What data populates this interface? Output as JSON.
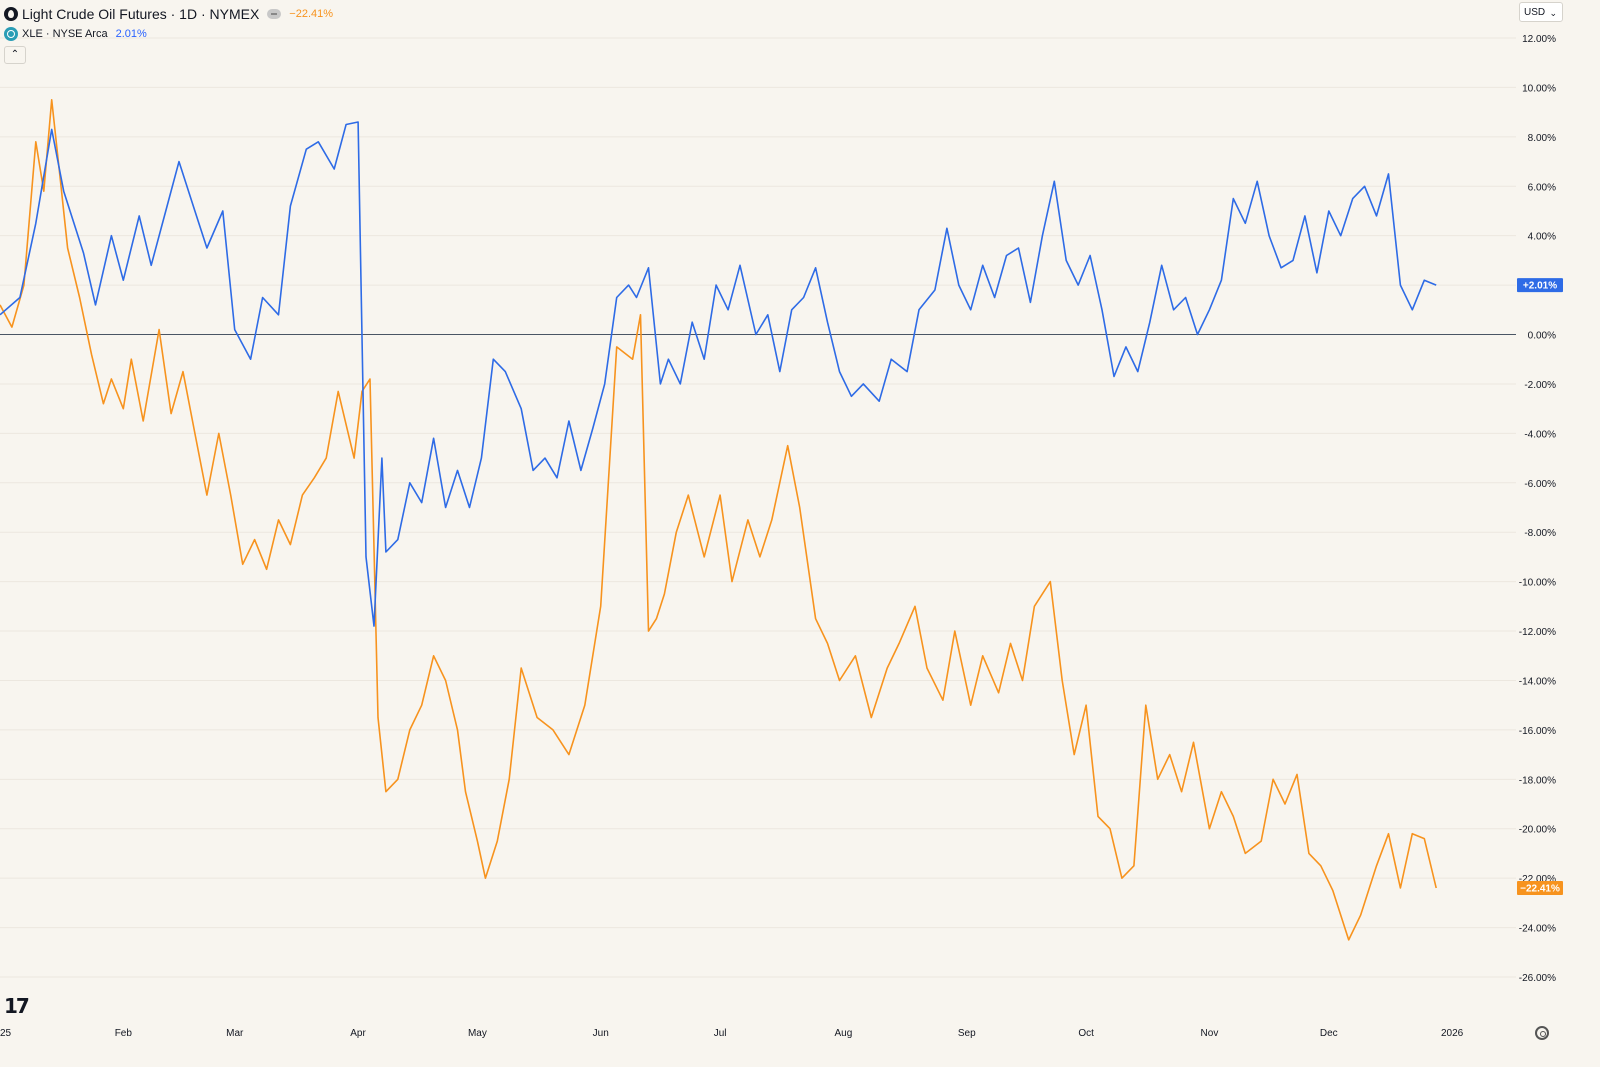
{
  "legend": {
    "main_title": "Light Crude Oil Futures · 1D · NYMEX",
    "main_change": "−22.41%",
    "compare_title": "XLE · NYSE Arca",
    "compare_change": "2.01%"
  },
  "toolbar": {
    "collapse_glyph": "⌃",
    "currency": "USD",
    "currency_chevron": "⌄"
  },
  "logo_text": "17",
  "colors": {
    "oil": "#f7931e",
    "xle": "#2e6be6",
    "background": "#f8f5ef",
    "grid": "#ece7df",
    "zero_line": "#4a5564"
  },
  "chart_data": {
    "type": "line",
    "percent_scale": true,
    "ylim": [
      -26,
      12
    ],
    "y_ticks": [
      12,
      10,
      8,
      6,
      4,
      2,
      0,
      -2,
      -4,
      -6,
      -8,
      -10,
      -12,
      -14,
      -16,
      -18,
      -20,
      -22,
      -24,
      -26
    ],
    "y_tick_labels": [
      "12.00%",
      "10.00%",
      "8.00%",
      "6.00%",
      "4.00%",
      "2.00%",
      "0.00%",
      "-2.00%",
      "-4.00%",
      "-6.00%",
      "-8.00%",
      "-10.00%",
      "-12.00%",
      "-14.00%",
      "-16.00%",
      "-18.00%",
      "-20.00%",
      "-22.00%",
      "-24.00%",
      "-26.00%"
    ],
    "xlim": [
      "2025-01-01",
      "2026-01-07"
    ],
    "x_ticks": [
      "2025-01-01",
      "2025-02-01",
      "2025-03-01",
      "2025-04-01",
      "2025-05-01",
      "2025-06-01",
      "2025-07-01",
      "2025-08-01",
      "2025-09-01",
      "2025-10-01",
      "2025-11-01",
      "2025-12-01",
      "2026-01-01"
    ],
    "x_tick_labels": [
      "25",
      "Feb",
      "Mar",
      "Apr",
      "May",
      "Jun",
      "Jul",
      "Aug",
      "Sep",
      "Oct",
      "Nov",
      "Dec",
      "2026"
    ],
    "grid": true,
    "series": [
      {
        "name": "XLE",
        "role": "xle",
        "last_label": "+2.01%",
        "x": [
          "2025-01-01",
          "2025-01-06",
          "2025-01-10",
          "2025-01-14",
          "2025-01-17",
          "2025-01-22",
          "2025-01-25",
          "2025-01-29",
          "2025-02-01",
          "2025-02-05",
          "2025-02-08",
          "2025-02-12",
          "2025-02-15",
          "2025-02-19",
          "2025-02-22",
          "2025-02-26",
          "2025-03-01",
          "2025-03-05",
          "2025-03-08",
          "2025-03-12",
          "2025-03-15",
          "2025-03-19",
          "2025-03-22",
          "2025-03-26",
          "2025-03-29",
          "2025-04-01",
          "2025-04-03",
          "2025-04-05",
          "2025-04-07",
          "2025-04-08",
          "2025-04-11",
          "2025-04-14",
          "2025-04-17",
          "2025-04-20",
          "2025-04-23",
          "2025-04-26",
          "2025-04-29",
          "2025-05-02",
          "2025-05-05",
          "2025-05-08",
          "2025-05-12",
          "2025-05-15",
          "2025-05-18",
          "2025-05-21",
          "2025-05-24",
          "2025-05-27",
          "2025-05-30",
          "2025-06-02",
          "2025-06-05",
          "2025-06-08",
          "2025-06-10",
          "2025-06-13",
          "2025-06-16",
          "2025-06-18",
          "2025-06-21",
          "2025-06-24",
          "2025-06-27",
          "2025-06-30",
          "2025-07-03",
          "2025-07-06",
          "2025-07-10",
          "2025-07-13",
          "2025-07-16",
          "2025-07-19",
          "2025-07-22",
          "2025-07-25",
          "2025-07-28",
          "2025-07-31",
          "2025-08-03",
          "2025-08-06",
          "2025-08-10",
          "2025-08-13",
          "2025-08-17",
          "2025-08-20",
          "2025-08-24",
          "2025-08-27",
          "2025-08-30",
          "2025-09-02",
          "2025-09-05",
          "2025-09-08",
          "2025-09-11",
          "2025-09-14",
          "2025-09-17",
          "2025-09-20",
          "2025-09-23",
          "2025-09-26",
          "2025-09-29",
          "2025-10-02",
          "2025-10-05",
          "2025-10-08",
          "2025-10-11",
          "2025-10-14",
          "2025-10-17",
          "2025-10-20",
          "2025-10-23",
          "2025-10-26",
          "2025-10-29",
          "2025-11-01",
          "2025-11-04",
          "2025-11-07",
          "2025-11-10",
          "2025-11-13",
          "2025-11-16",
          "2025-11-19",
          "2025-11-22",
          "2025-11-25",
          "2025-11-28",
          "2025-12-01",
          "2025-12-04",
          "2025-12-07",
          "2025-12-10",
          "2025-12-13",
          "2025-12-16",
          "2025-12-19",
          "2025-12-22",
          "2025-12-25",
          "2025-12-28"
        ],
        "y": [
          0.8,
          1.5,
          4.5,
          8.3,
          5.8,
          3.3,
          1.2,
          4.0,
          2.2,
          4.8,
          2.8,
          5.2,
          7.0,
          5.0,
          3.5,
          5.0,
          0.2,
          -1.0,
          1.5,
          0.8,
          5.2,
          7.5,
          7.8,
          6.7,
          8.5,
          8.6,
          -9.0,
          -11.8,
          -5.0,
          -8.8,
          -8.3,
          -6.0,
          -6.8,
          -4.2,
          -7.0,
          -5.5,
          -7.0,
          -5.0,
          -1.0,
          -1.5,
          -3.0,
          -5.5,
          -5.0,
          -5.8,
          -3.5,
          -5.5,
          -3.8,
          -2.0,
          1.5,
          2.0,
          1.5,
          2.7,
          -2.0,
          -1.0,
          -2.0,
          0.5,
          -1.0,
          2.0,
          1.0,
          2.8,
          0.0,
          0.8,
          -1.5,
          1.0,
          1.5,
          2.7,
          0.5,
          -1.5,
          -2.5,
          -2.0,
          -2.7,
          -1.0,
          -1.5,
          1.0,
          1.8,
          4.3,
          2.0,
          1.0,
          2.8,
          1.5,
          3.2,
          3.5,
          1.3,
          4.0,
          6.2,
          3.0,
          2.0,
          3.2,
          1.0,
          -1.7,
          -0.5,
          -1.5,
          0.5,
          2.8,
          1.0,
          1.5,
          0.0,
          1.0,
          2.2,
          5.5,
          4.5,
          6.2,
          4.0,
          2.7,
          3.0,
          4.8,
          2.5,
          5.0,
          4.0,
          5.5,
          6.0,
          4.8,
          6.5,
          2.0,
          1.0,
          2.2,
          2.0
        ]
      },
      {
        "name": "Light Crude Oil Futures",
        "role": "oil",
        "last_label": "−22.41%",
        "x": [
          "2025-01-01",
          "2025-01-04",
          "2025-01-07",
          "2025-01-10",
          "2025-01-12",
          "2025-01-14",
          "2025-01-16",
          "2025-01-18",
          "2025-01-21",
          "2025-01-24",
          "2025-01-27",
          "2025-01-29",
          "2025-02-01",
          "2025-02-03",
          "2025-02-06",
          "2025-02-10",
          "2025-02-13",
          "2025-02-16",
          "2025-02-19",
          "2025-02-22",
          "2025-02-25",
          "2025-02-28",
          "2025-03-03",
          "2025-03-06",
          "2025-03-09",
          "2025-03-12",
          "2025-03-15",
          "2025-03-18",
          "2025-03-21",
          "2025-03-24",
          "2025-03-27",
          "2025-03-31",
          "2025-04-02",
          "2025-04-04",
          "2025-04-06",
          "2025-04-08",
          "2025-04-11",
          "2025-04-14",
          "2025-04-17",
          "2025-04-20",
          "2025-04-23",
          "2025-04-26",
          "2025-04-28",
          "2025-05-01",
          "2025-05-03",
          "2025-05-06",
          "2025-05-09",
          "2025-05-12",
          "2025-05-16",
          "2025-05-20",
          "2025-05-24",
          "2025-05-28",
          "2025-06-01",
          "2025-06-05",
          "2025-06-09",
          "2025-06-11",
          "2025-06-13",
          "2025-06-15",
          "2025-06-17",
          "2025-06-20",
          "2025-06-23",
          "2025-06-27",
          "2025-07-01",
          "2025-07-04",
          "2025-07-08",
          "2025-07-11",
          "2025-07-14",
          "2025-07-18",
          "2025-07-21",
          "2025-07-25",
          "2025-07-28",
          "2025-07-31",
          "2025-08-04",
          "2025-08-08",
          "2025-08-12",
          "2025-08-15",
          "2025-08-19",
          "2025-08-22",
          "2025-08-26",
          "2025-08-29",
          "2025-09-02",
          "2025-09-05",
          "2025-09-09",
          "2025-09-12",
          "2025-09-15",
          "2025-09-18",
          "2025-09-22",
          "2025-09-25",
          "2025-09-28",
          "2025-10-01",
          "2025-10-04",
          "2025-10-07",
          "2025-10-10",
          "2025-10-13",
          "2025-10-16",
          "2025-10-19",
          "2025-10-22",
          "2025-10-25",
          "2025-10-28",
          "2025-11-01",
          "2025-11-04",
          "2025-11-07",
          "2025-11-10",
          "2025-11-14",
          "2025-11-17",
          "2025-11-20",
          "2025-11-23",
          "2025-11-26",
          "2025-11-29",
          "2025-12-02",
          "2025-12-06",
          "2025-12-09",
          "2025-12-13",
          "2025-12-16",
          "2025-12-19",
          "2025-12-22",
          "2025-12-25",
          "2025-12-28"
        ],
        "y": [
          1.2,
          0.3,
          2.0,
          7.8,
          5.8,
          9.5,
          6.5,
          3.5,
          1.5,
          -0.8,
          -2.8,
          -1.8,
          -3.0,
          -1.0,
          -3.5,
          0.2,
          -3.2,
          -1.5,
          -4.0,
          -6.5,
          -4.0,
          -6.5,
          -9.3,
          -8.3,
          -9.5,
          -7.5,
          -8.5,
          -6.5,
          -5.8,
          -5.0,
          -2.3,
          -5.0,
          -2.3,
          -1.8,
          -15.5,
          -18.5,
          -18.0,
          -16.0,
          -15.0,
          -13.0,
          -14.0,
          -16.0,
          -18.5,
          -20.5,
          -22.0,
          -20.5,
          -18.0,
          -13.5,
          -15.5,
          -16.0,
          -17.0,
          -15.0,
          -11.0,
          -0.5,
          -1.0,
          0.8,
          -12.0,
          -11.5,
          -10.5,
          -8.0,
          -6.5,
          -9.0,
          -6.5,
          -10.0,
          -7.5,
          -9.0,
          -7.5,
          -4.5,
          -7.0,
          -11.5,
          -12.5,
          -14.0,
          -13.0,
          -15.5,
          -13.5,
          -12.5,
          -11.0,
          -13.5,
          -14.8,
          -12.0,
          -15.0,
          -13.0,
          -14.5,
          -12.5,
          -14.0,
          -11.0,
          -10.0,
          -14.0,
          -17.0,
          -15.0,
          -19.5,
          -20.0,
          -22.0,
          -21.5,
          -15.0,
          -18.0,
          -17.0,
          -18.5,
          -16.5,
          -20.0,
          -18.5,
          -19.5,
          -21.0,
          -20.5,
          -18.0,
          -19.0,
          -17.8,
          -21.0,
          -21.5,
          -22.5,
          -24.5,
          -23.5,
          -21.5,
          -20.2,
          -22.4,
          -20.2,
          -20.4,
          -22.4
        ]
      }
    ]
  }
}
